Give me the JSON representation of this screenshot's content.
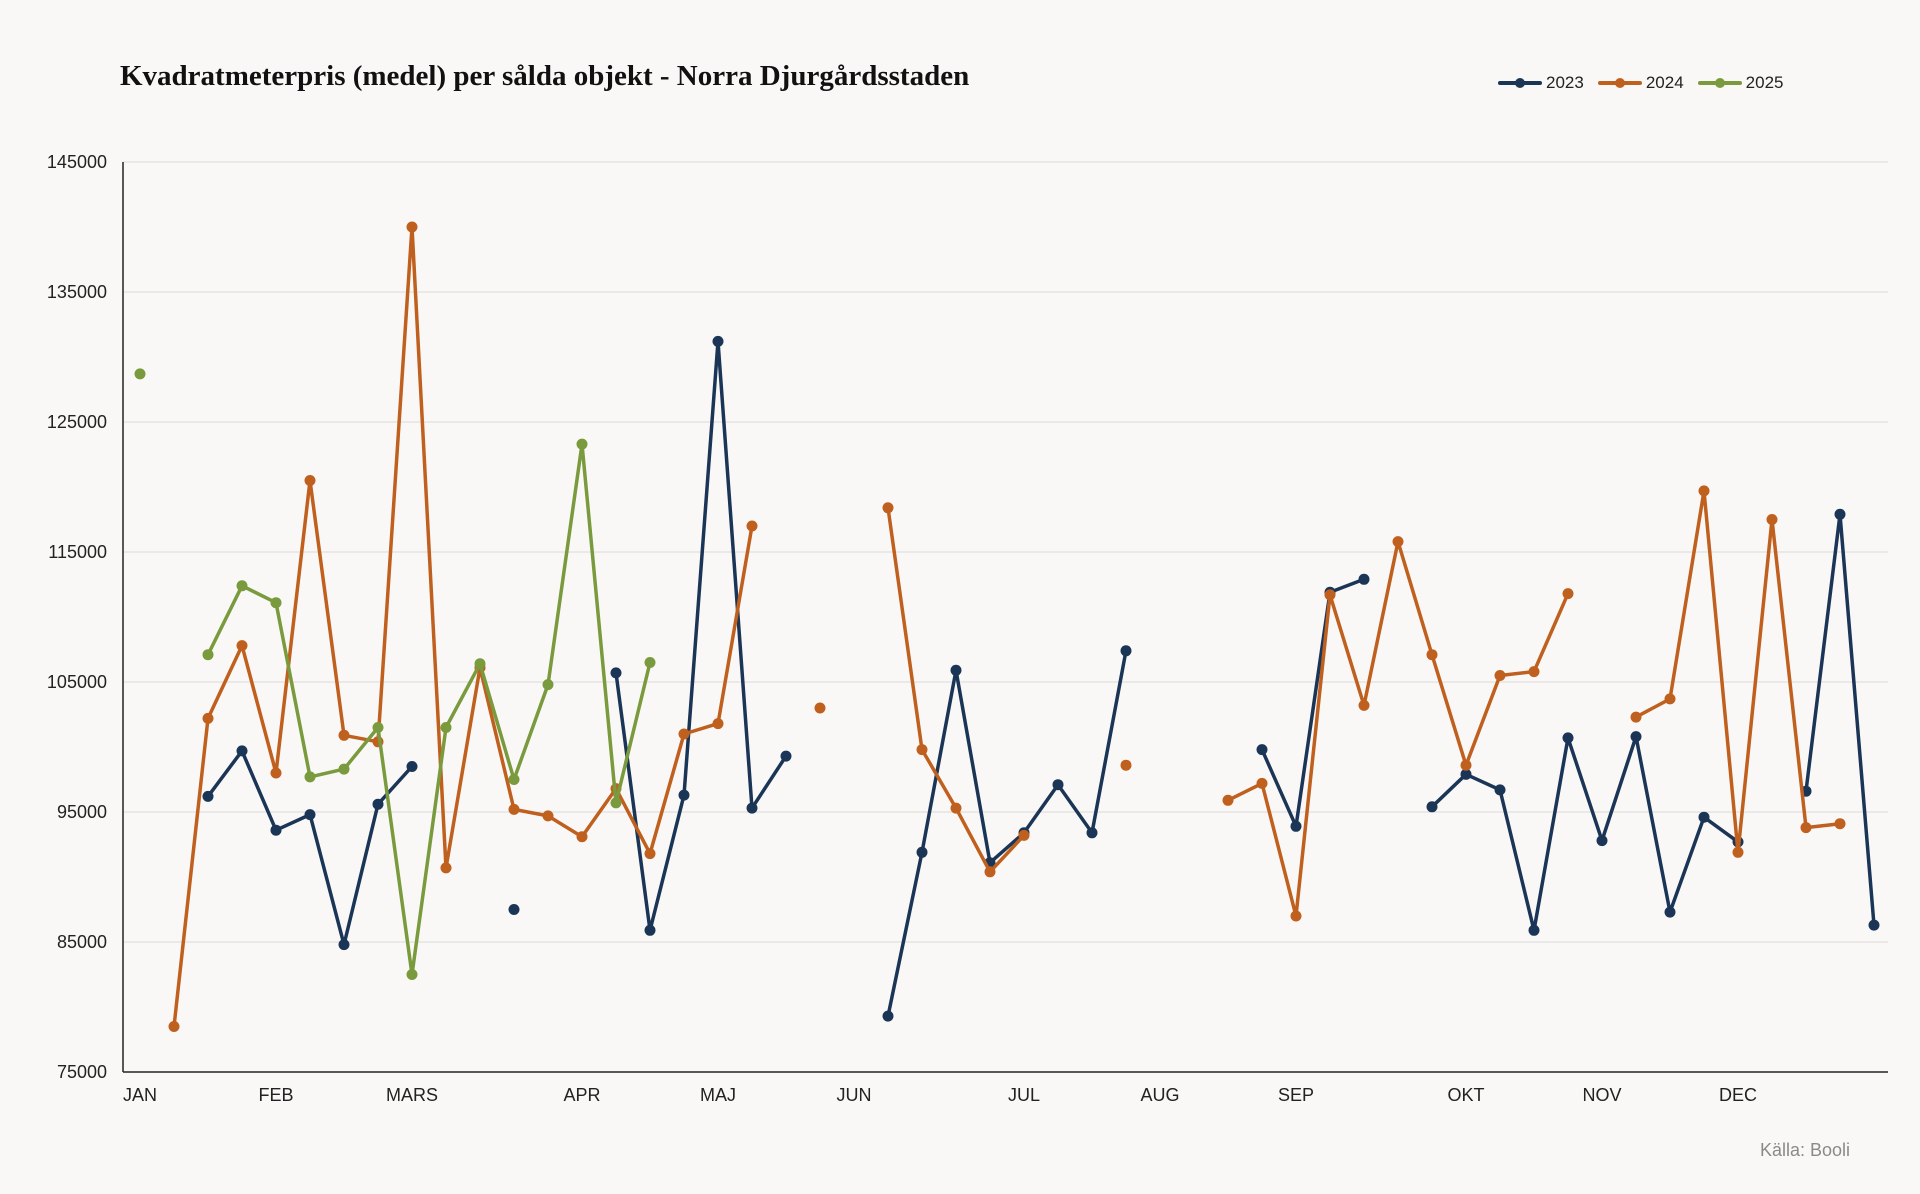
{
  "title": "Kvadratmeterpris (medel) per sålda objekt - Norra Djurgårdsstaden",
  "source": "Källa: Booli",
  "colors": {
    "2023": "#1b3557",
    "2024": "#c0601f",
    "2025": "#7a9a3e"
  },
  "chart_data": {
    "type": "line",
    "title": "Kvadratmeterpris (medel) per sålda objekt - Norra Djurgårdsstaden",
    "xlabel": "",
    "ylabel": "",
    "ylim": [
      75000,
      145000
    ],
    "yticks": [
      75000,
      85000,
      95000,
      105000,
      115000,
      125000,
      135000,
      145000
    ],
    "month_labels": [
      "JAN",
      "FEB",
      "MARS",
      "APR",
      "MAJ",
      "JUN",
      "JUL",
      "AUG",
      "SEP",
      "OKT",
      "NOV",
      "DEC"
    ],
    "month_label_slots": [
      0,
      4,
      8,
      13,
      17,
      21,
      26,
      30,
      34,
      39,
      43,
      47
    ],
    "num_slots": 52,
    "grid": "horizontal",
    "legend_position": "top-right",
    "series": [
      {
        "name": "2023",
        "color": "#1b3557",
        "values": [
          null,
          null,
          96200,
          99700,
          93600,
          94800,
          84800,
          95600,
          98500,
          null,
          null,
          87500,
          null,
          null,
          105700,
          85900,
          96300,
          131200,
          95300,
          99300,
          null,
          null,
          79300,
          91900,
          105900,
          91100,
          93400,
          97100,
          93400,
          107400,
          null,
          null,
          null,
          99800,
          93900,
          111900,
          112900,
          null,
          95400,
          97900,
          96700,
          85900,
          100700,
          92800,
          100800,
          87300,
          94600,
          92700,
          null,
          96600,
          117900,
          86300
        ]
      },
      {
        "name": "2024",
        "color": "#c0601f",
        "values": [
          null,
          78500,
          102200,
          107800,
          98000,
          120500,
          100900,
          100400,
          140000,
          90700,
          106100,
          95200,
          94700,
          93100,
          96800,
          91800,
          101000,
          101800,
          117000,
          null,
          103000,
          null,
          118400,
          99800,
          95300,
          90400,
          93200,
          null,
          null,
          98600,
          null,
          null,
          95900,
          97200,
          87000,
          111700,
          103200,
          115800,
          107100,
          98600,
          105500,
          105800,
          111800,
          null,
          102300,
          103700,
          119700,
          91900,
          117500,
          93800,
          94100,
          null
        ]
      },
      {
        "name": "2025",
        "color": "#7a9a3e",
        "values": [
          128700,
          null,
          107100,
          112400,
          111100,
          97700,
          98300,
          101500,
          82500,
          101500,
          106400,
          97500,
          104800,
          123300,
          95700,
          106500,
          null,
          null,
          null,
          null,
          null,
          null,
          null,
          null,
          null,
          null,
          null,
          null,
          null,
          null,
          null,
          null,
          null,
          null,
          null,
          null,
          null,
          null,
          null,
          null,
          null,
          null,
          null,
          null,
          null,
          null,
          null,
          null,
          null,
          null,
          null,
          null
        ]
      }
    ]
  }
}
